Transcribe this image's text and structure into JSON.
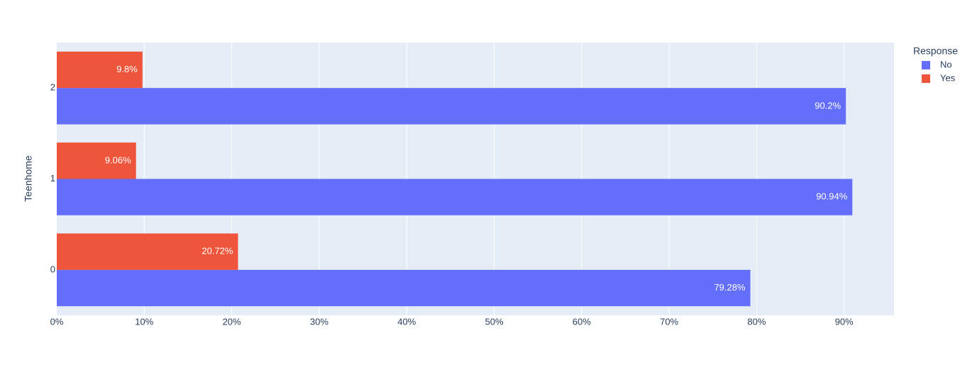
{
  "chart_data": {
    "type": "bar",
    "orientation": "horizontal",
    "y_label": "Teenhome",
    "legend_title": "Response",
    "categories": [
      "0",
      "1",
      "2"
    ],
    "series": [
      {
        "name": "No",
        "color": "#636efa",
        "values": [
          79.28,
          90.94,
          90.2
        ],
        "value_labels": [
          "79.28%",
          "90.94%",
          "90.2%"
        ]
      },
      {
        "name": "Yes",
        "color": "#ef553b",
        "values": [
          20.72,
          9.06,
          9.8
        ],
        "value_labels": [
          "20.72%",
          "9.06%",
          "9.8%"
        ]
      }
    ],
    "xlim": [
      0,
      95.7
    ],
    "xticks": [
      {
        "value": 0,
        "label": "0%"
      },
      {
        "value": 10,
        "label": "10%"
      },
      {
        "value": 20,
        "label": "20%"
      },
      {
        "value": 30,
        "label": "30%"
      },
      {
        "value": 40,
        "label": "40%"
      },
      {
        "value": 50,
        "label": "50%"
      },
      {
        "value": 60,
        "label": "60%"
      },
      {
        "value": 70,
        "label": "70%"
      },
      {
        "value": 80,
        "label": "80%"
      },
      {
        "value": 90,
        "label": "90%"
      }
    ],
    "grid": true
  }
}
